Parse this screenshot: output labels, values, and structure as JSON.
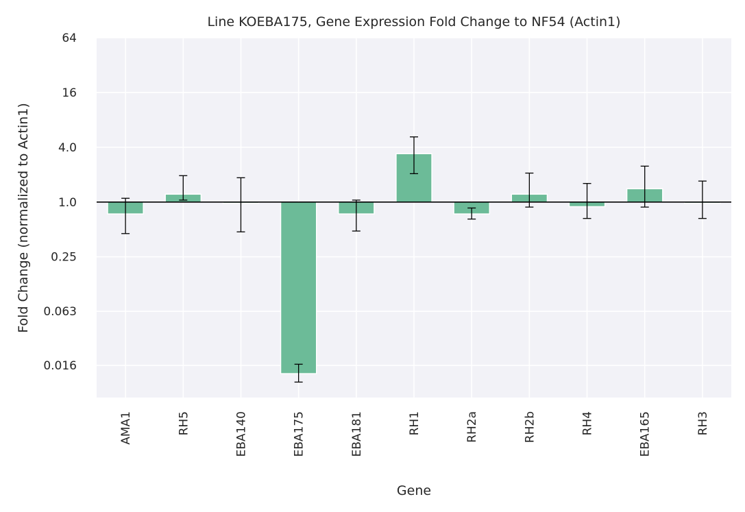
{
  "chart_data": {
    "type": "bar",
    "title": "Line KOEBA175, Gene Expression Fold Change to NF54 (Actin1)",
    "xlabel": "Gene",
    "ylabel": "Fold Change (normalized to Actin1)",
    "yscale": "log2",
    "ylim": [
      0.0071,
      64
    ],
    "yticks": [
      64,
      16,
      4.0,
      1.0,
      0.25,
      0.063,
      0.016
    ],
    "ytick_labels": [
      "64",
      "16",
      "4.0",
      "1.0",
      "0.25",
      "0.063",
      "0.016"
    ],
    "reference_line": 1.0,
    "grid": true,
    "categories": [
      "AMA1",
      "RH5",
      "EBA140",
      "EBA175",
      "EBA181",
      "RH1",
      "RH2a",
      "RH2b",
      "RH4",
      "EBA165",
      "RH3"
    ],
    "values": [
      0.74,
      1.22,
      0.97,
      0.013,
      0.74,
      3.4,
      0.74,
      1.22,
      0.89,
      1.4,
      0.97
    ],
    "error_low": [
      0.45,
      1.05,
      0.47,
      0.0105,
      0.48,
      2.05,
      0.65,
      0.88,
      0.66,
      0.88,
      0.66
    ],
    "error_high": [
      1.1,
      1.95,
      1.85,
      0.0165,
      1.05,
      5.2,
      0.86,
      2.08,
      1.6,
      2.48,
      1.7
    ],
    "colors": {
      "bar": "#6cbb98",
      "background": "#f2f2f7",
      "grid": "#ffffff",
      "reference_line": "#000000",
      "error_bar": "#000000"
    }
  }
}
